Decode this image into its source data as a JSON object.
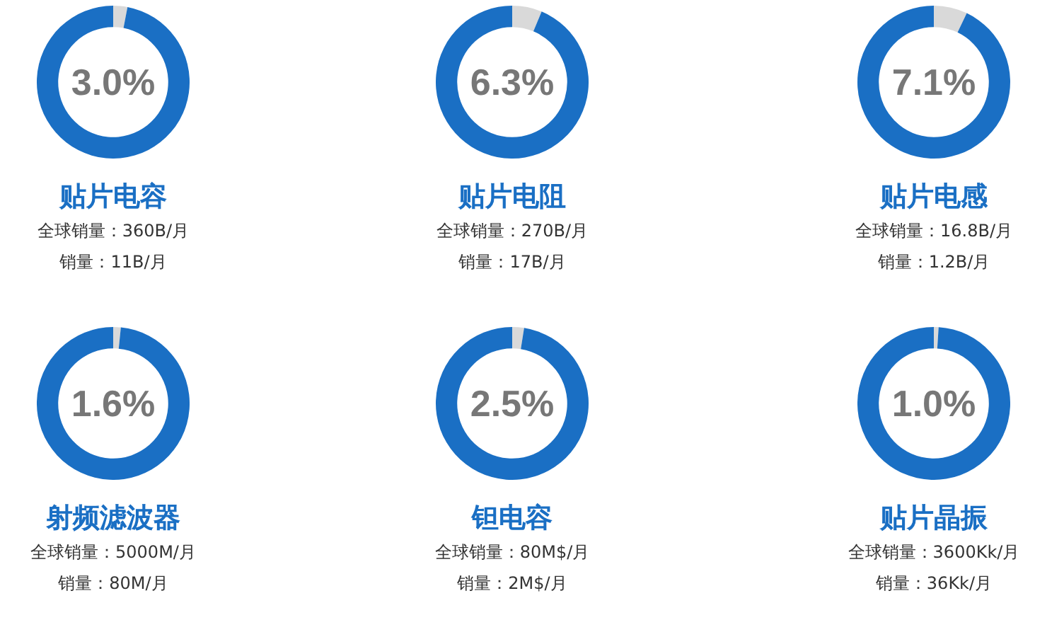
{
  "chart_data": [
    {
      "type": "donut",
      "title": "贴片电容",
      "categories": [
        null,
        null
      ],
      "values": [
        3.0,
        97.0
      ],
      "colors": [
        "#d9d9d9",
        "#1a6fc4"
      ],
      "annotations": [
        "3.0%",
        "全球销量：360B/月",
        "销量：11B/月"
      ]
    },
    {
      "type": "donut",
      "title": "贴片电阻",
      "categories": [
        null,
        null
      ],
      "values": [
        6.3,
        93.7
      ],
      "colors": [
        "#d9d9d9",
        "#1a6fc4"
      ],
      "annotations": [
        "6.3%",
        "全球销量：270B/月",
        "销量：17B/月"
      ]
    },
    {
      "type": "donut",
      "title": "贴片电感",
      "categories": [
        null,
        null
      ],
      "values": [
        7.1,
        92.9
      ],
      "colors": [
        "#d9d9d9",
        "#1a6fc4"
      ],
      "annotations": [
        "7.1%",
        "全球销量：16.8B/月",
        "销量：1.2B/月"
      ]
    },
    {
      "type": "donut",
      "title": "射频滤波器",
      "categories": [
        null,
        null
      ],
      "values": [
        1.6,
        98.4
      ],
      "colors": [
        "#d9d9d9",
        "#1a6fc4"
      ],
      "annotations": [
        "1.6%",
        "全球销量：5000M/月",
        "销量：80M/月"
      ]
    },
    {
      "type": "donut",
      "title": "钽电容",
      "categories": [
        null,
        null
      ],
      "values": [
        2.5,
        97.5
      ],
      "colors": [
        "#d9d9d9",
        "#1a6fc4"
      ],
      "annotations": [
        "2.5%",
        "全球销量：80M$/月",
        "销量：2M$/月"
      ]
    },
    {
      "type": "donut",
      "title": "贴片晶振",
      "categories": [
        null,
        null
      ],
      "values": [
        1.0,
        99.0
      ],
      "colors": [
        "#d9d9d9",
        "#1a6fc4"
      ],
      "annotations": [
        "1.0%",
        "全球销量：3600Kk/月",
        "销量：36Kk/月"
      ]
    }
  ]
}
